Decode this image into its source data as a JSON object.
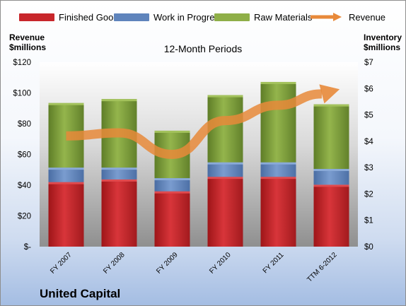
{
  "colors": {
    "finished_goods": "#c8262b",
    "work_in_progress": "#5f84bc",
    "raw_materials": "#7f9e3a",
    "revenue_line": "#e8893a"
  },
  "chart_data": {
    "type": "bar",
    "stacked": true,
    "title": "United Capital",
    "subtitle": "12-Month Periods",
    "categories": [
      "FY 2007",
      "FY 2008",
      "FY 2009",
      "FY 2010",
      "FY 2011",
      "TTM 6-2012"
    ],
    "series": [
      {
        "name": "Finished Goods",
        "axis": "right",
        "values": [
          2.45,
          2.55,
          2.1,
          2.65,
          2.65,
          2.35
        ]
      },
      {
        "name": "Work in Progress",
        "axis": "right",
        "values": [
          0.55,
          0.45,
          0.5,
          0.55,
          0.55,
          0.6
        ]
      },
      {
        "name": "Raw Materials",
        "axis": "right",
        "values": [
          2.45,
          2.6,
          1.8,
          2.55,
          3.05,
          2.45
        ]
      },
      {
        "name": "Revenue",
        "type": "line",
        "axis": "left",
        "values": [
          72,
          74,
          60,
          82,
          92,
          101
        ]
      }
    ],
    "left_axis": {
      "label": "Revenue $millions",
      "ylim": [
        0,
        120
      ],
      "ticks": [
        0,
        20,
        40,
        60,
        80,
        100,
        120
      ],
      "tick_labels": [
        "$-",
        "$20",
        "$40",
        "$60",
        "$80",
        "$100",
        "$120"
      ]
    },
    "right_axis": {
      "label": "Inventory $millions",
      "ylim": [
        0,
        7
      ],
      "ticks": [
        0,
        1,
        2,
        3,
        4,
        5,
        6,
        7
      ],
      "tick_labels": [
        "$0",
        "$1",
        "$2",
        "$3",
        "$4",
        "$5",
        "$6",
        "$7"
      ]
    },
    "grid": false,
    "legend": "top"
  },
  "legend": {
    "finished_goods": "Finished Goods",
    "work_in_progress": "Work in Progress",
    "raw_materials": "Raw Materials",
    "revenue": "Revenue"
  },
  "left_axis_title": {
    "line1": "Revenue",
    "line2": "$millions"
  },
  "right_axis_title": {
    "line1": "Inventory",
    "line2": "$millions"
  }
}
